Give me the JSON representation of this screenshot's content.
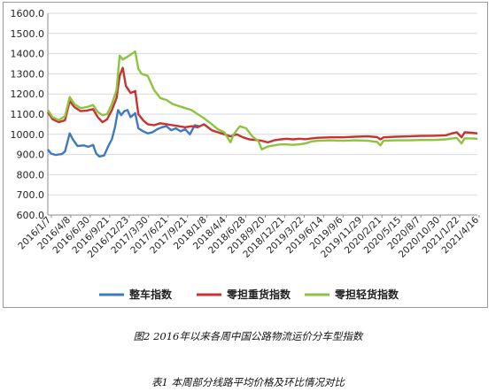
{
  "figure_caption": "图2  2016年以来各周中国公路物流运价分车型指数",
  "table_caption": "表1   本周部分线路平均价格及环比情况对比",
  "chart_data": {
    "type": "line",
    "title": "",
    "xlabel": "",
    "ylabel": "",
    "ylim": [
      600,
      1600
    ],
    "yticks": [
      "600.0",
      "700.0",
      "800.0",
      "900.0",
      "1000.0",
      "1100.0",
      "1200.0",
      "1300.0",
      "1400.0",
      "1500.0",
      "1600.0"
    ],
    "x_tick_labels": [
      "2016/1/7",
      "2016/4/8",
      "2016/6/30",
      "2016/9/21",
      "2016/12/23",
      "2017/3/30",
      "2017/6/21",
      "2017/9/21",
      "2018/1/8",
      "2018/4/4",
      "2018/6/28",
      "2018/9/20",
      "2018/12/21",
      "2019/3/22",
      "2019/6/14",
      "2019/9/6",
      "2019/11/29",
      "2020/2/21",
      "2020/5/15",
      "2020/8/7",
      "2020/10/30",
      "2021/1/22",
      "2021/4/16"
    ],
    "x_start": "2016-01-07",
    "x_end": "2021-04-16",
    "legend_position": "bottom",
    "series": [
      {
        "name": "整车指数",
        "color": "#3f78c5",
        "points": [
          [
            "2016-01-07",
            925
          ],
          [
            "2016-01-21",
            905
          ],
          [
            "2016-02-11",
            898
          ],
          [
            "2016-03-10",
            902
          ],
          [
            "2016-03-24",
            915
          ],
          [
            "2016-04-14",
            1005
          ],
          [
            "2016-04-28",
            975
          ],
          [
            "2016-05-19",
            942
          ],
          [
            "2016-06-16",
            945
          ],
          [
            "2016-07-07",
            938
          ],
          [
            "2016-07-28",
            948
          ],
          [
            "2016-08-11",
            905
          ],
          [
            "2016-08-25",
            890
          ],
          [
            "2016-09-15",
            895
          ],
          [
            "2016-10-06",
            945
          ],
          [
            "2016-10-20",
            975
          ],
          [
            "2016-11-03",
            1035
          ],
          [
            "2016-11-17",
            1120
          ],
          [
            "2016-12-01",
            1095
          ],
          [
            "2016-12-15",
            1115
          ],
          [
            "2016-12-29",
            1120
          ],
          [
            "2017-01-12",
            1085
          ],
          [
            "2017-02-02",
            1105
          ],
          [
            "2017-02-16",
            1030
          ],
          [
            "2017-03-09",
            1015
          ],
          [
            "2017-03-30",
            1005
          ],
          [
            "2017-04-20",
            1010
          ],
          [
            "2017-05-11",
            1025
          ],
          [
            "2017-06-01",
            1035
          ],
          [
            "2017-06-22",
            1040
          ],
          [
            "2017-07-13",
            1020
          ],
          [
            "2017-08-03",
            1030
          ],
          [
            "2017-08-24",
            1015
          ],
          [
            "2017-09-14",
            1025
          ],
          [
            "2017-10-05",
            1000
          ],
          [
            "2017-10-26",
            1045
          ],
          [
            "2017-11-16",
            1040
          ]
        ]
      },
      {
        "name": "零担重货指数",
        "color": "#c8322f",
        "points": [
          [
            "2016-01-07",
            1110
          ],
          [
            "2016-01-28",
            1075
          ],
          [
            "2016-02-25",
            1060
          ],
          [
            "2016-03-24",
            1070
          ],
          [
            "2016-04-14",
            1165
          ],
          [
            "2016-05-05",
            1135
          ],
          [
            "2016-06-02",
            1115
          ],
          [
            "2016-06-30",
            1118
          ],
          [
            "2016-07-28",
            1125
          ],
          [
            "2016-08-18",
            1085
          ],
          [
            "2016-09-08",
            1060
          ],
          [
            "2016-09-29",
            1075
          ],
          [
            "2016-10-20",
            1120
          ],
          [
            "2016-11-10",
            1180
          ],
          [
            "2016-11-24",
            1290
          ],
          [
            "2016-12-08",
            1330
          ],
          [
            "2016-12-22",
            1240
          ],
          [
            "2017-01-12",
            1205
          ],
          [
            "2017-02-02",
            1215
          ],
          [
            "2017-02-16",
            1100
          ],
          [
            "2017-03-09",
            1070
          ],
          [
            "2017-03-30",
            1050
          ],
          [
            "2017-04-27",
            1045
          ],
          [
            "2017-05-25",
            1055
          ],
          [
            "2017-06-22",
            1050
          ],
          [
            "2017-07-20",
            1045
          ],
          [
            "2017-08-17",
            1040
          ],
          [
            "2017-09-14",
            1035
          ],
          [
            "2017-10-12",
            1040
          ],
          [
            "2017-11-09",
            1035
          ],
          [
            "2017-12-07",
            1050
          ],
          [
            "2018-01-11",
            1020
          ],
          [
            "2018-02-08",
            1010
          ],
          [
            "2018-03-08",
            1000
          ],
          [
            "2018-04-05",
            990
          ],
          [
            "2018-05-03",
            1000
          ],
          [
            "2018-05-31",
            985
          ],
          [
            "2018-06-28",
            975
          ],
          [
            "2018-07-26",
            972
          ],
          [
            "2018-08-23",
            968
          ],
          [
            "2018-09-20",
            960
          ],
          [
            "2018-10-18",
            970
          ],
          [
            "2018-11-15",
            975
          ],
          [
            "2018-12-13",
            978
          ],
          [
            "2019-01-10",
            975
          ],
          [
            "2019-02-07",
            978
          ],
          [
            "2019-03-07",
            976
          ],
          [
            "2019-04-04",
            980
          ],
          [
            "2019-05-02",
            983
          ],
          [
            "2019-06-27",
            985
          ],
          [
            "2019-08-22",
            985
          ],
          [
            "2019-10-17",
            988
          ],
          [
            "2019-12-12",
            990
          ],
          [
            "2020-01-23",
            986
          ],
          [
            "2020-02-06",
            975
          ],
          [
            "2020-02-20",
            985
          ],
          [
            "2020-04-16",
            988
          ],
          [
            "2020-06-11",
            990
          ],
          [
            "2020-08-06",
            992
          ],
          [
            "2020-10-01",
            993
          ],
          [
            "2020-11-26",
            995
          ],
          [
            "2020-12-24",
            1005
          ],
          [
            "2021-01-14",
            1010
          ],
          [
            "2021-02-04",
            985
          ],
          [
            "2021-02-18",
            1010
          ],
          [
            "2021-03-18",
            1008
          ],
          [
            "2021-04-16",
            1005
          ]
        ]
      },
      {
        "name": "零担轻货指数",
        "color": "#8dc43f",
        "points": [
          [
            "2016-01-07",
            1120
          ],
          [
            "2016-01-28",
            1085
          ],
          [
            "2016-02-25",
            1070
          ],
          [
            "2016-03-24",
            1090
          ],
          [
            "2016-04-14",
            1185
          ],
          [
            "2016-05-05",
            1150
          ],
          [
            "2016-06-02",
            1130
          ],
          [
            "2016-06-30",
            1135
          ],
          [
            "2016-07-28",
            1145
          ],
          [
            "2016-08-18",
            1110
          ],
          [
            "2016-09-08",
            1095
          ],
          [
            "2016-09-29",
            1100
          ],
          [
            "2016-10-20",
            1150
          ],
          [
            "2016-11-10",
            1220
          ],
          [
            "2016-11-24",
            1390
          ],
          [
            "2016-12-08",
            1370
          ],
          [
            "2016-12-22",
            1380
          ],
          [
            "2017-01-12",
            1395
          ],
          [
            "2017-02-02",
            1410
          ],
          [
            "2017-02-16",
            1325
          ],
          [
            "2017-03-02",
            1300
          ],
          [
            "2017-03-30",
            1290
          ],
          [
            "2017-04-27",
            1220
          ],
          [
            "2017-05-25",
            1180
          ],
          [
            "2017-06-22",
            1170
          ],
          [
            "2017-07-20",
            1150
          ],
          [
            "2017-08-17",
            1140
          ],
          [
            "2017-09-14",
            1130
          ],
          [
            "2017-10-12",
            1120
          ],
          [
            "2017-11-09",
            1100
          ],
          [
            "2017-12-07",
            1080
          ],
          [
            "2018-01-11",
            1050
          ],
          [
            "2018-02-08",
            1025
          ],
          [
            "2018-03-08",
            1010
          ],
          [
            "2018-04-05",
            960
          ],
          [
            "2018-04-19",
            1000
          ],
          [
            "2018-05-17",
            1040
          ],
          [
            "2018-06-14",
            1030
          ],
          [
            "2018-07-12",
            990
          ],
          [
            "2018-08-09",
            965
          ],
          [
            "2018-08-23",
            925
          ],
          [
            "2018-09-20",
            940
          ],
          [
            "2018-10-18",
            945
          ],
          [
            "2018-11-15",
            950
          ],
          [
            "2018-12-13",
            950
          ],
          [
            "2019-01-10",
            948
          ],
          [
            "2019-02-07",
            950
          ],
          [
            "2019-03-07",
            955
          ],
          [
            "2019-04-04",
            965
          ],
          [
            "2019-05-02",
            968
          ],
          [
            "2019-06-27",
            970
          ],
          [
            "2019-08-22",
            968
          ],
          [
            "2019-10-17",
            970
          ],
          [
            "2019-12-12",
            968
          ],
          [
            "2020-01-23",
            962
          ],
          [
            "2020-02-06",
            945
          ],
          [
            "2020-02-20",
            968
          ],
          [
            "2020-04-16",
            970
          ],
          [
            "2020-06-11",
            970
          ],
          [
            "2020-08-06",
            972
          ],
          [
            "2020-10-01",
            972
          ],
          [
            "2020-11-26",
            975
          ],
          [
            "2020-12-24",
            980
          ],
          [
            "2021-01-14",
            982
          ],
          [
            "2021-02-04",
            955
          ],
          [
            "2021-02-18",
            980
          ],
          [
            "2021-03-18",
            980
          ],
          [
            "2021-04-16",
            978
          ]
        ]
      }
    ]
  }
}
